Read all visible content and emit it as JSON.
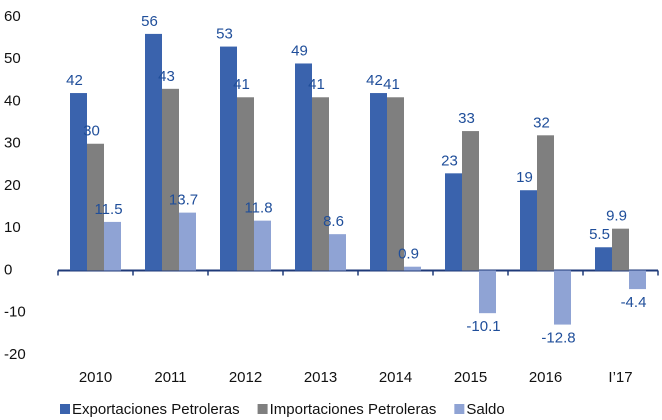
{
  "chart_data": {
    "type": "bar",
    "categories": [
      "2010",
      "2011",
      "2012",
      "2013",
      "2014",
      "2015",
      "2016",
      "I’17"
    ],
    "series": [
      {
        "name": "Exportaciones Petroleras",
        "color": "#3a63ad",
        "values": [
          42,
          56,
          53,
          49,
          42,
          23,
          19,
          5.5
        ]
      },
      {
        "name": "Importaciones Petroleras",
        "color": "#7f7f7f",
        "values": [
          30,
          43,
          41,
          41,
          41,
          33,
          32,
          9.9
        ]
      },
      {
        "name": "Saldo",
        "color": "#8fa3d4",
        "values": [
          11.5,
          13.7,
          11.8,
          8.6,
          0.9,
          -10.1,
          -12.8,
          -4.4
        ]
      }
    ],
    "ylim": [
      -20,
      60
    ],
    "yticks": [
      -20,
      -10,
      0,
      10,
      20,
      30,
      40,
      50,
      60
    ],
    "grid": false,
    "legend": "bottom"
  }
}
